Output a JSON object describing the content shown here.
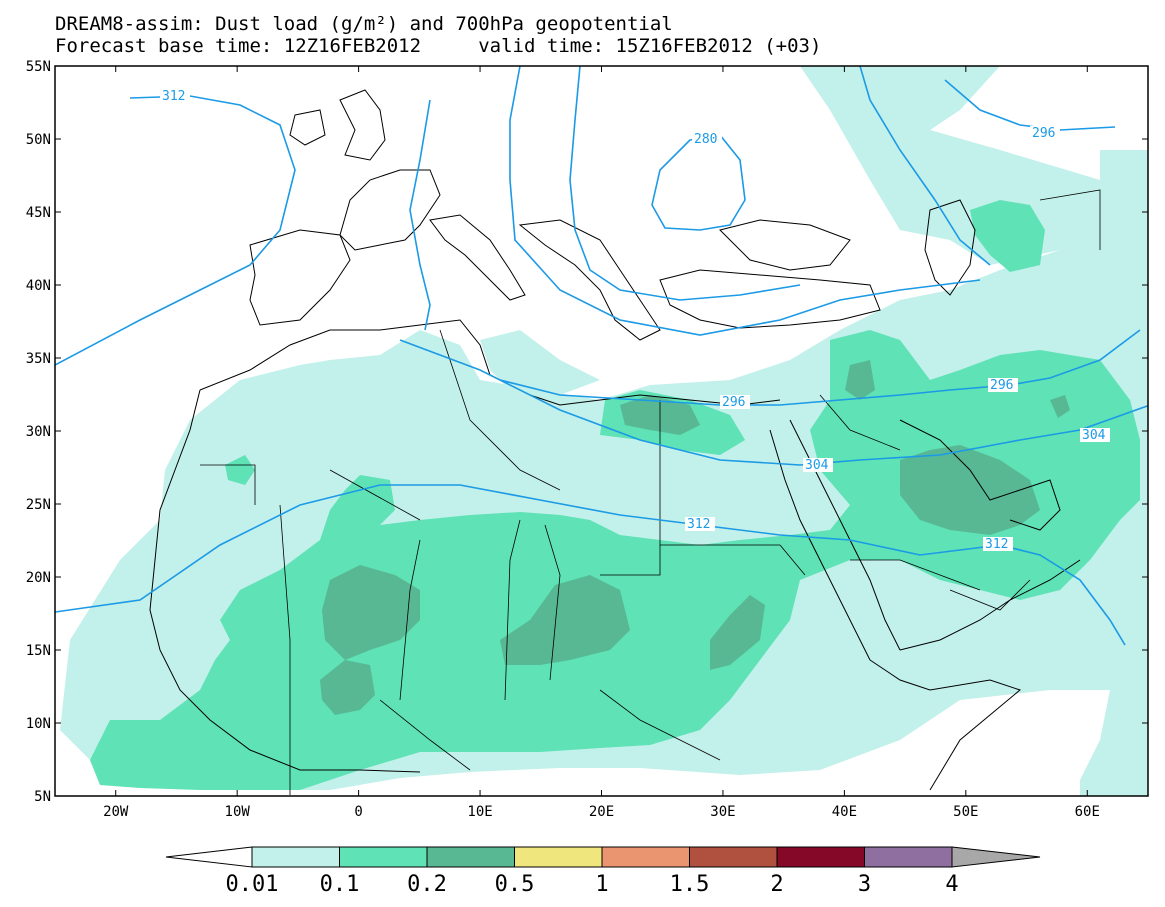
{
  "title_line1": "DREAM8-assim: Dust load (g/m²) and 700hPa geopotential",
  "title_line2": "Forecast base time: 12Z16FEB2012     valid time: 15Z16FEB2012 (+03)",
  "map": {
    "lon_range": [
      -25,
      65
    ],
    "lat_range": [
      5,
      55
    ],
    "lat_labels": [
      "55N",
      "50N",
      "45N",
      "40N",
      "35N",
      "30N",
      "25N",
      "20N",
      "15N",
      "10N",
      "5N"
    ],
    "lon_labels": [
      "20W",
      "10W",
      "0",
      "10E",
      "20E",
      "30E",
      "40E",
      "50E",
      "60E"
    ]
  },
  "contour_labels": [
    "312",
    "280",
    "296",
    "296",
    "296",
    "304",
    "304",
    "312",
    "312"
  ],
  "colorbar": {
    "labels": [
      "0.01",
      "0.1",
      "0.2",
      "0.5",
      "1",
      "1.5",
      "2",
      "3",
      "4"
    ],
    "colors": [
      "#ffffff",
      "#c2f0ea",
      "#5ee2b6",
      "#58b894",
      "#f0e67e",
      "#ea9570",
      "#b0503e",
      "#850828",
      "#8f6ea0",
      "#a8a8a8"
    ]
  },
  "colors": {
    "dust_low": "#c2f0ea",
    "dust_mid": "#5ee2b6",
    "dust_high": "#58b894",
    "contour": "#1b9ae6",
    "coast": "#000000"
  }
}
